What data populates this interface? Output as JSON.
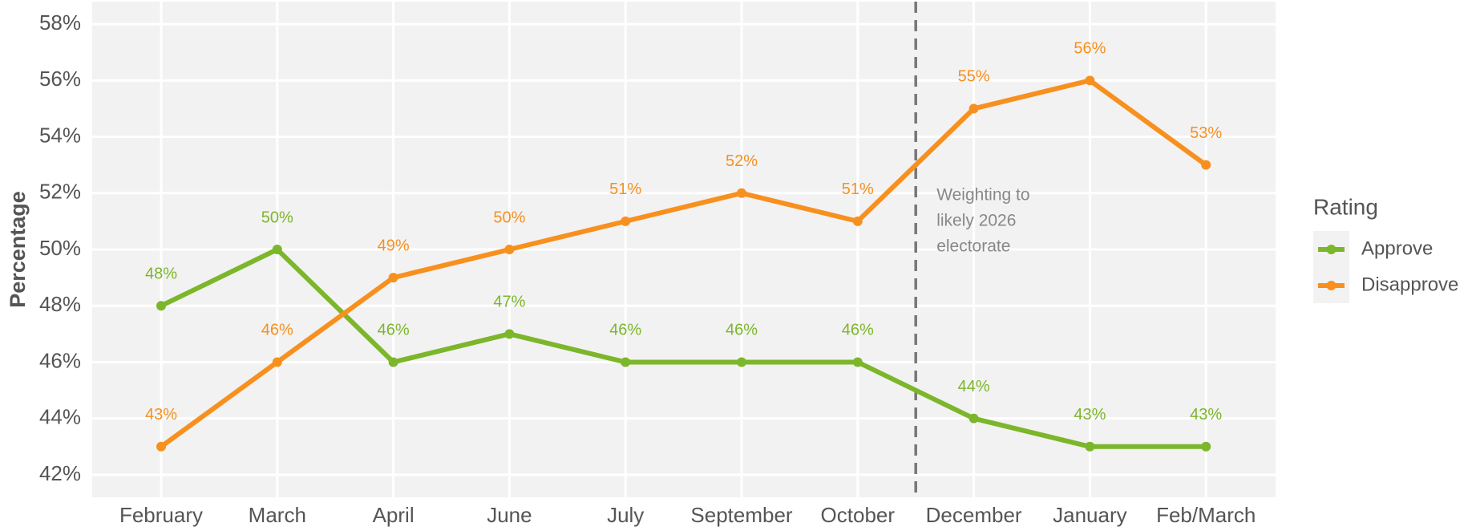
{
  "chart_data": {
    "type": "line",
    "y_label": "Percentage",
    "categories": [
      "February",
      "March",
      "April",
      "June",
      "July",
      "September",
      "October",
      "December",
      "January",
      "Feb/March"
    ],
    "series": [
      {
        "name": "Approve",
        "color": "#7cb62a",
        "values": [
          48,
          50,
          46,
          47,
          46,
          46,
          46,
          44,
          43,
          43
        ],
        "value_labels": [
          "48%",
          "50%",
          "46%",
          "47%",
          "46%",
          "46%",
          "46%",
          "44%",
          "43%",
          "43%"
        ]
      },
      {
        "name": "Disapprove",
        "color": "#f7901e",
        "values": [
          43,
          46,
          49,
          50,
          51,
          52,
          51,
          55,
          56,
          53
        ],
        "value_labels": [
          "43%",
          "46%",
          "49%",
          "50%",
          "51%",
          "52%",
          "51%",
          "55%",
          "56%",
          "53%"
        ]
      }
    ],
    "ylim": [
      41.2,
      58.8
    ],
    "yticks": [
      {
        "value": 42,
        "label": "42%"
      },
      {
        "value": 44,
        "label": "44%"
      },
      {
        "value": 46,
        "label": "46%"
      },
      {
        "value": 48,
        "label": "48%"
      },
      {
        "value": 50,
        "label": "50%"
      },
      {
        "value": 52,
        "label": "52%"
      },
      {
        "value": 54,
        "label": "54%"
      },
      {
        "value": 56,
        "label": "56%"
      },
      {
        "value": 58,
        "label": "58%"
      }
    ],
    "grid": true,
    "legend_title": "Rating",
    "legend": "right",
    "annotation": {
      "x": 6.5,
      "lines": [
        "Weighting to",
        "likely 2026",
        "electorate"
      ]
    }
  }
}
